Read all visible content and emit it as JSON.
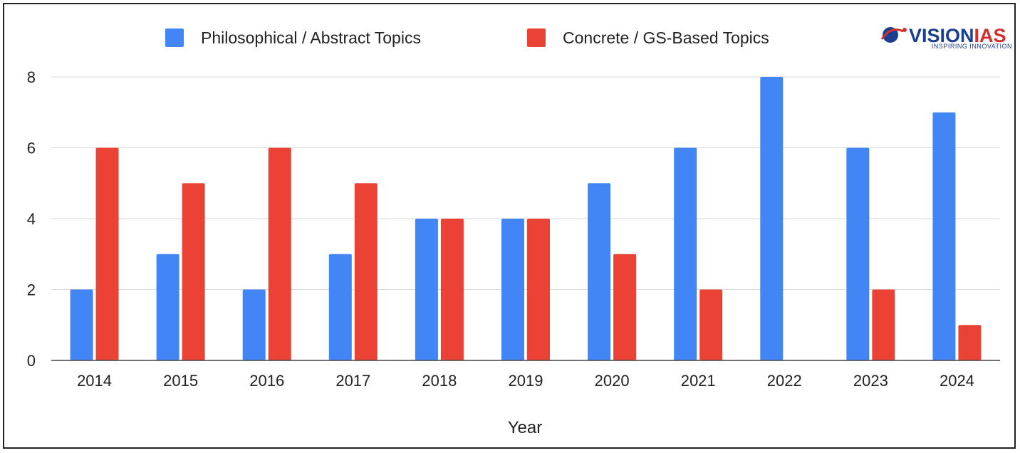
{
  "chart_data": {
    "type": "bar",
    "title": "",
    "xlabel": "Year",
    "ylabel": "",
    "categories": [
      "2014",
      "2015",
      "2016",
      "2017",
      "2018",
      "2019",
      "2020",
      "2021",
      "2022",
      "2023",
      "2024"
    ],
    "series": [
      {
        "name": "Philosophical / Abstract Topics",
        "color": "#4285f4",
        "values": [
          2,
          3,
          2,
          3,
          4,
          4,
          5,
          6,
          8,
          6,
          7
        ]
      },
      {
        "name": "Concrete / GS-Based Topics",
        "color": "#ea4335",
        "values": [
          6,
          5,
          6,
          5,
          4,
          4,
          3,
          2,
          0,
          2,
          1
        ]
      }
    ],
    "ylim": [
      0,
      8
    ],
    "yticks": [
      0,
      2,
      4,
      6,
      8
    ],
    "grid": true,
    "legend_position": "top-center"
  },
  "logo": {
    "name_part1": "VISION",
    "name_part2": "IAS",
    "tagline": "INSPIRING INNOVATION",
    "color_blue": "#1b3f8f",
    "color_red": "#d32f2f"
  }
}
